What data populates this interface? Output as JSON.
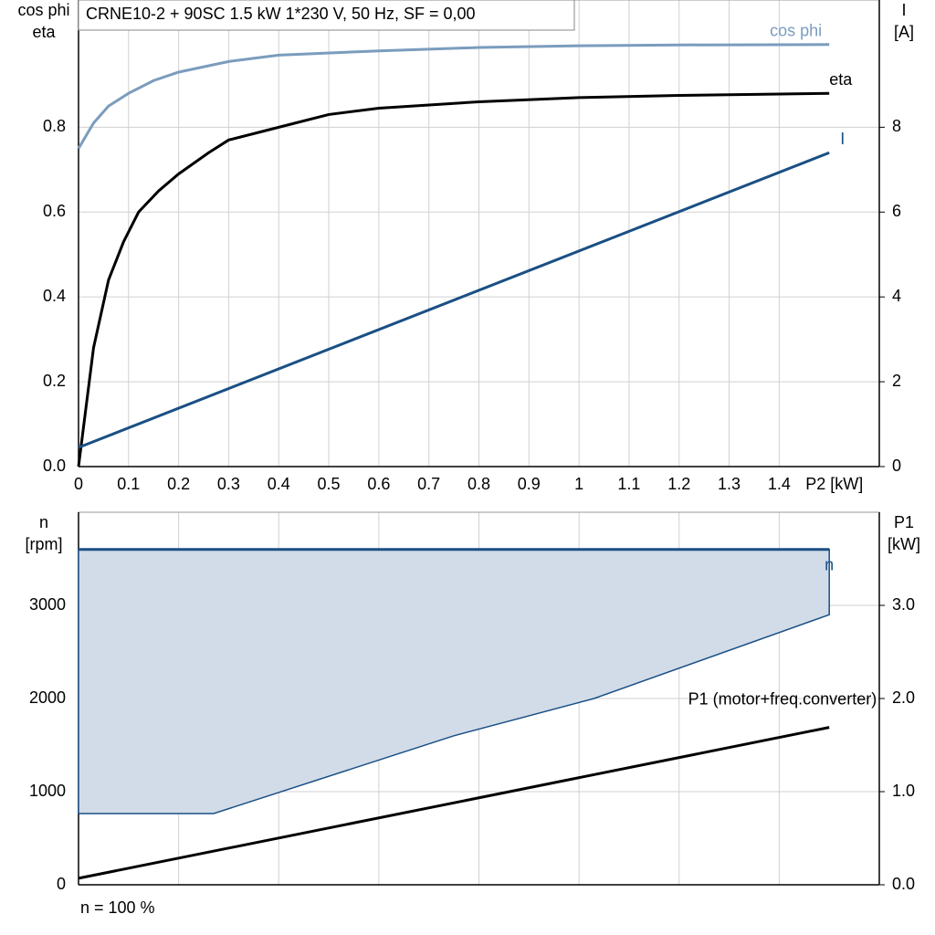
{
  "chart_data": [
    {
      "type": "line",
      "title": "CRNE10-2 + 90SC   1.5 kW   1*230 V, 50 Hz, SF = 0,00",
      "ylabel": [
        "cos phi",
        "eta"
      ],
      "y2label": [
        "I",
        "[A]"
      ],
      "xlabel": "P2 [kW]",
      "xlim": [
        0,
        1.6
      ],
      "ylim": [
        0,
        1.1
      ],
      "y2lim": [
        0,
        11
      ],
      "xticks": [
        0,
        0.1,
        0.2,
        0.3,
        0.4,
        0.5,
        0.6,
        0.7,
        0.8,
        0.9,
        1.0,
        1.1,
        1.2,
        1.3,
        1.4
      ],
      "yticks": [
        {
          "value": 0,
          "label": "0.0"
        },
        0.2,
        0.4,
        0.6,
        0.8
      ],
      "y2ticks": [
        0,
        2,
        4,
        6,
        8
      ],
      "grid": true,
      "series": [
        {
          "name": "cos phi",
          "color": "#7b9cbd",
          "x": [
            0,
            0.03,
            0.06,
            0.1,
            0.15,
            0.2,
            0.3,
            0.4,
            0.6,
            0.8,
            1.0,
            1.2,
            1.5
          ],
          "values": [
            0.75,
            0.81,
            0.85,
            0.88,
            0.91,
            0.93,
            0.955,
            0.97,
            0.98,
            0.988,
            0.992,
            0.994,
            0.995
          ]
        },
        {
          "name": "eta",
          "color": "#000000",
          "x": [
            0,
            0.03,
            0.06,
            0.09,
            0.12,
            0.16,
            0.2,
            0.26,
            0.3,
            0.4,
            0.5,
            0.6,
            0.8,
            1.0,
            1.2,
            1.5
          ],
          "values": [
            0,
            0.28,
            0.44,
            0.53,
            0.6,
            0.65,
            0.69,
            0.74,
            0.77,
            0.8,
            0.83,
            0.845,
            0.86,
            0.87,
            0.875,
            0.88
          ]
        },
        {
          "name": "I",
          "color": "#1a4f85",
          "axis": "y2",
          "x": [
            0,
            1.5
          ],
          "values": [
            0.45,
            7.4
          ]
        }
      ]
    },
    {
      "type": "line",
      "ylabel": [
        "n",
        "[rpm]"
      ],
      "y2label": [
        "P1",
        "[kW]"
      ],
      "xlim": [
        0,
        1.6
      ],
      "ylim": [
        0,
        4000
      ],
      "y2lim": [
        0,
        4
      ],
      "yticks": [
        0,
        1000,
        2000,
        3000
      ],
      "y2ticks": [
        {
          "value": 0,
          "label": "0.0"
        },
        {
          "value": 1,
          "label": "1.0"
        },
        {
          "value": 2,
          "label": "2.0"
        },
        {
          "value": 3,
          "label": "3.0"
        }
      ],
      "grid": true,
      "band": {
        "color": "#d1dce8",
        "x": [
          0,
          0.27,
          0.75,
          1.03,
          1.5
        ],
        "values": [
          765,
          765,
          1600,
          2000,
          2900
        ]
      },
      "series": [
        {
          "name": "n",
          "color": "#1a4f85",
          "x": [
            0,
            1.5
          ],
          "values": [
            3600,
            3600
          ]
        },
        {
          "name": "P1 (motor+freq.converter)",
          "color": "#000000",
          "axis": "y2",
          "x": [
            0,
            1.5
          ],
          "values": [
            0.07,
            1.69
          ]
        }
      ],
      "note": "n = 100 %"
    }
  ]
}
